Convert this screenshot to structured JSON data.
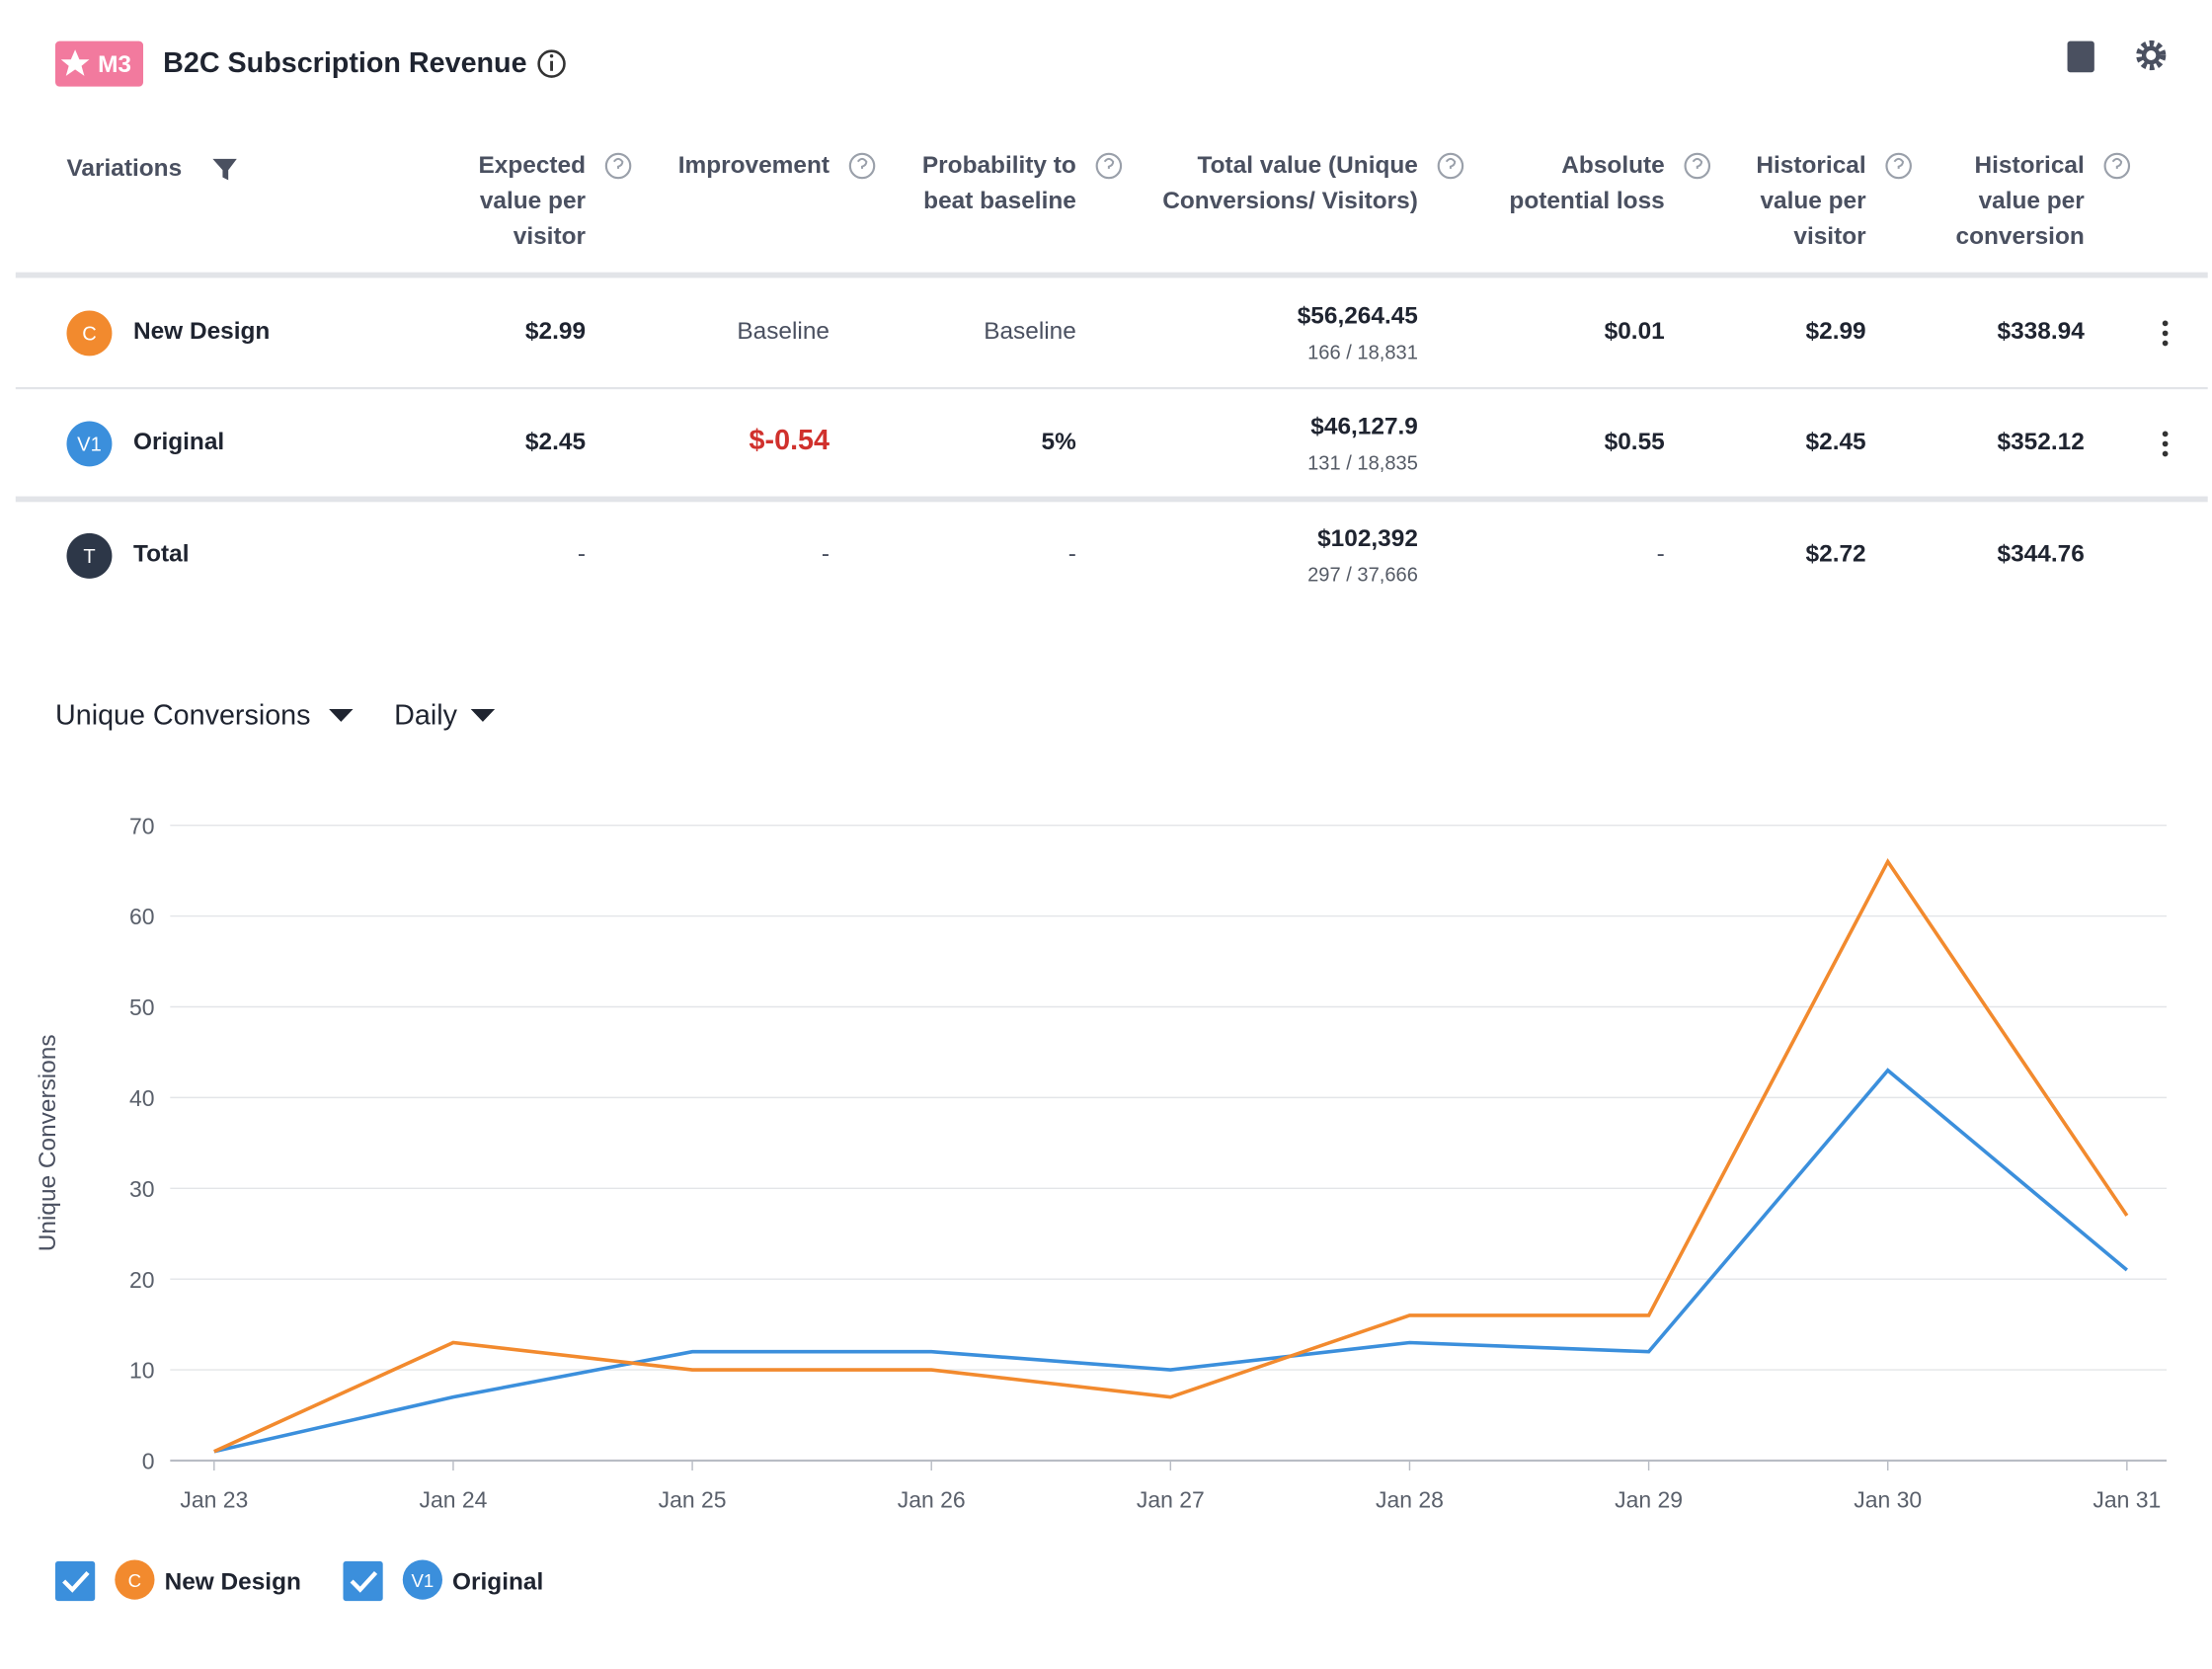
{
  "header": {
    "badge": "M3",
    "title": "B2C Subscription Revenue"
  },
  "table": {
    "columns": [
      "Variations",
      "Expected value per visitor",
      "Improvement",
      "Probability to beat baseline",
      "Total value (Unique Conversions/ Visitors)",
      "Absolute potential loss",
      "Historical value per visitor",
      "Historical value per conversion"
    ],
    "rows": [
      {
        "badge": "C",
        "name": "New Design",
        "cells": [
          "$2.99",
          "Baseline",
          "Baseline",
          "$56,264.45",
          "$0.01",
          "$2.99",
          "$338.94"
        ],
        "total_detail": "166 / 18,831"
      },
      {
        "badge": "V1",
        "name": "Original",
        "cells": [
          "$2.45",
          "$-0.54",
          "5%",
          "$46,127.9",
          "$0.55",
          "$2.45",
          "$352.12"
        ],
        "total_detail": "131 / 18,835"
      },
      {
        "badge": "T",
        "name": "Total",
        "cells": [
          "-",
          "-",
          "-",
          "$102,392",
          "-",
          "$2.72",
          "$344.76"
        ],
        "total_detail": "297 / 37,666"
      }
    ]
  },
  "chart_data": {
    "type": "line",
    "metric": "Unique Conversions",
    "interval": "Daily",
    "y_label": "Unique Conversions",
    "categories": [
      "Jan 23",
      "Jan 24",
      "Jan 25",
      "Jan 26",
      "Jan 27",
      "Jan 28",
      "Jan 29",
      "Jan 30",
      "Jan 31"
    ],
    "series": [
      {
        "name": "New Design",
        "badge": "C",
        "color": "#f28a2e",
        "values": [
          1,
          13,
          10,
          10,
          7,
          16,
          16,
          66,
          27
        ]
      },
      {
        "name": "Original",
        "badge": "V1",
        "color": "#3b8fdc",
        "values": [
          1,
          7,
          12,
          12,
          10,
          13,
          12,
          43,
          21
        ]
      }
    ],
    "ylim": [
      0,
      70
    ],
    "yticks": [
      0,
      10,
      20,
      30,
      40,
      50,
      60,
      70
    ],
    "grid": true
  }
}
